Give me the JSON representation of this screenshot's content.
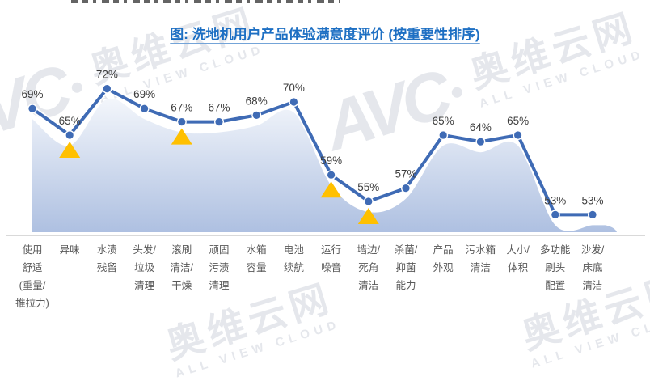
{
  "title": {
    "text": "图: 洗地机用户产品体验满意度评价 (按重要性排序)"
  },
  "watermark": {
    "logo": "AVC",
    "brand": "奥维云网",
    "tagline": "ALL VIEW CLOUD"
  },
  "colors": {
    "title_blue": "#1d6fc3",
    "line_blue": "#3f6bb5",
    "triangle_orange": "#ffc000",
    "area_gradient_top": "#f3f6fb",
    "area_gradient_bottom": "#aec0e1",
    "label_gray": "#3d3d3d",
    "axis_gray": "#d9d9d9"
  },
  "chart_data": {
    "type": "line",
    "title": "图: 洗地机用户产品体验满意度评价 (按重要性排序)",
    "categories": [
      "使用舒适(重量/推拉力)",
      "异味",
      "水渍残留",
      "头发/垃圾清理",
      "滚刷清洁/干燥",
      "顽固污渍清理",
      "水箱容量",
      "电池续航",
      "运行噪音",
      "墙边/死角清洁",
      "杀菌/抑菌能力",
      "产品外观",
      "污水箱清洁",
      "大小/体积",
      "多功能刷头配置",
      "沙发/床底清洁"
    ],
    "category_lines": [
      [
        "使用",
        "舒适",
        "(重量/",
        "推拉力)"
      ],
      [
        "异味"
      ],
      [
        "水渍",
        "残留"
      ],
      [
        "头发/",
        "垃圾",
        "清理"
      ],
      [
        "滚刷",
        "清洁/",
        "干燥"
      ],
      [
        "顽固",
        "污渍",
        "清理"
      ],
      [
        "水箱",
        "容量"
      ],
      [
        "电池",
        "续航"
      ],
      [
        "运行",
        "噪音"
      ],
      [
        "墙边/",
        "死角",
        "清洁"
      ],
      [
        "杀菌/",
        "抑菌",
        "能力"
      ],
      [
        "产品",
        "外观"
      ],
      [
        "污水箱",
        "清洁"
      ],
      [
        "大小/",
        "体积"
      ],
      [
        "多功能",
        "刷头",
        "配置"
      ],
      [
        "沙发/",
        "床底",
        "清洁"
      ]
    ],
    "values": [
      69,
      65,
      72,
      69,
      67,
      67,
      68,
      70,
      59,
      55,
      57,
      65,
      64,
      65,
      53,
      53
    ],
    "point_labels": [
      "69%",
      "65%",
      "72%",
      "69%",
      "67%",
      "67%",
      "68%",
      "70%",
      "59%",
      "55%",
      "57%",
      "65%",
      "64%",
      "65%",
      "53%",
      "53%"
    ],
    "triangle_indices": [
      1,
      4,
      8,
      9
    ],
    "ylim": [
      50,
      75
    ],
    "xlabel": "",
    "ylabel": "",
    "grid": false,
    "legend": "none",
    "series_style": "straight line with round markers over smoothed gradient area"
  }
}
